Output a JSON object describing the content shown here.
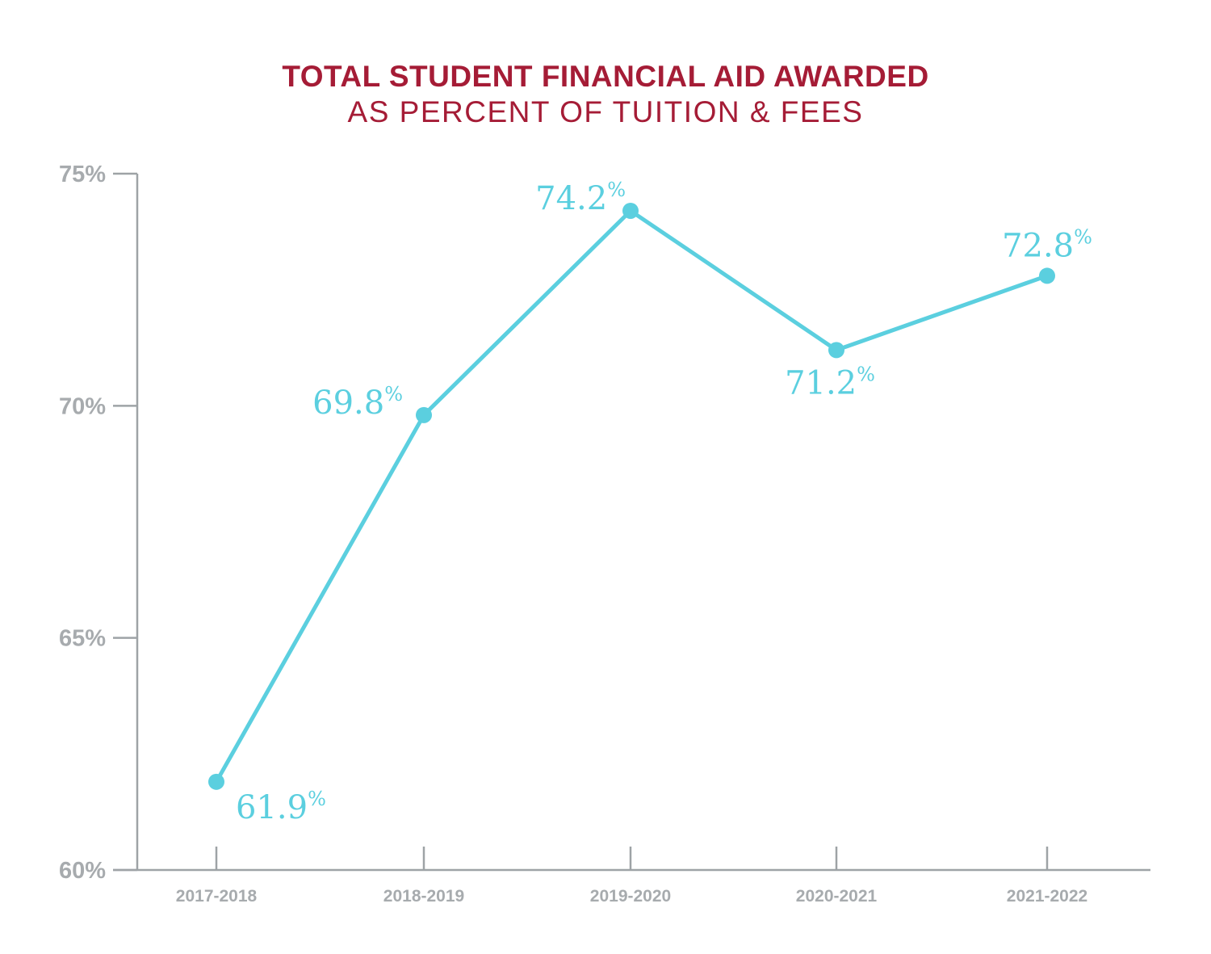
{
  "chart_data": {
    "type": "line",
    "title": "TOTAL STUDENT FINANCIAL AID AWARDED",
    "subtitle": "AS PERCENT OF TUITION & FEES",
    "xlabel": "",
    "ylabel": "",
    "categories": [
      "2017-2018",
      "2018-2019",
      "2019-2020",
      "2020-2021",
      "2021-2022"
    ],
    "values": [
      61.9,
      69.8,
      74.2,
      71.2,
      72.8
    ],
    "data_labels": [
      "61.9",
      "69.8",
      "74.2",
      "71.2",
      "72.8"
    ],
    "data_label_suffix": "%",
    "ylim": [
      60,
      75
    ],
    "yticks": [
      60,
      65,
      70,
      75
    ],
    "ytick_labels": [
      "60%",
      "65%",
      "70%",
      "75%"
    ],
    "grid": false,
    "legend": "none",
    "colors": {
      "line": "#5bcfdf",
      "title": "#a51c36",
      "axis": "#9ea3a6",
      "tick_text": "#a7abae"
    }
  }
}
